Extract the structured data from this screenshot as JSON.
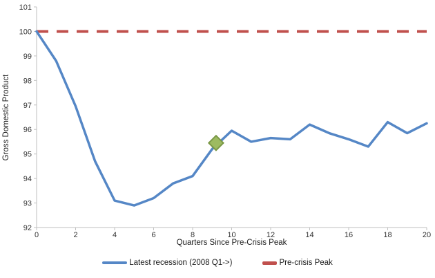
{
  "chart_data": {
    "type": "line",
    "title": "",
    "xlabel": "Quarters Since Pre-Crisis Peak",
    "ylabel": "Gross Domestic Product",
    "xlim": [
      0,
      20
    ],
    "ylim": [
      92,
      101
    ],
    "xticks": [
      0,
      2,
      4,
      6,
      8,
      10,
      12,
      14,
      16,
      18,
      20
    ],
    "yticks": [
      92,
      93,
      94,
      95,
      96,
      97,
      98,
      99,
      100,
      101
    ],
    "grid": false,
    "legend_position": "bottom",
    "x": [
      0,
      1,
      2,
      3,
      4,
      5,
      6,
      7,
      8,
      9,
      10,
      11,
      12,
      13,
      14,
      15,
      16,
      17,
      18,
      19,
      20
    ],
    "series": [
      {
        "name": "Latest recession (2008 Q1->)",
        "style": "solid",
        "color": "#5587C6",
        "values": [
          100,
          98.8,
          96.95,
          94.7,
          93.1,
          92.9,
          93.2,
          93.8,
          94.1,
          95.2,
          95.95,
          95.5,
          95.65,
          95.6,
          96.2,
          95.85,
          95.6,
          95.3,
          96.3,
          95.85,
          96.25
        ]
      },
      {
        "name": "Pre-crisis Peak",
        "style": "dashed",
        "color": "#C0504D",
        "constant": 100
      }
    ],
    "marker": {
      "label": "latest-estimate-diamond",
      "x": 9.2,
      "y": 95.45,
      "fill": "#9DBB61",
      "stroke": "#7A9846"
    },
    "axis_color": "#BFBFBF",
    "tick_text_color": "#333333"
  }
}
